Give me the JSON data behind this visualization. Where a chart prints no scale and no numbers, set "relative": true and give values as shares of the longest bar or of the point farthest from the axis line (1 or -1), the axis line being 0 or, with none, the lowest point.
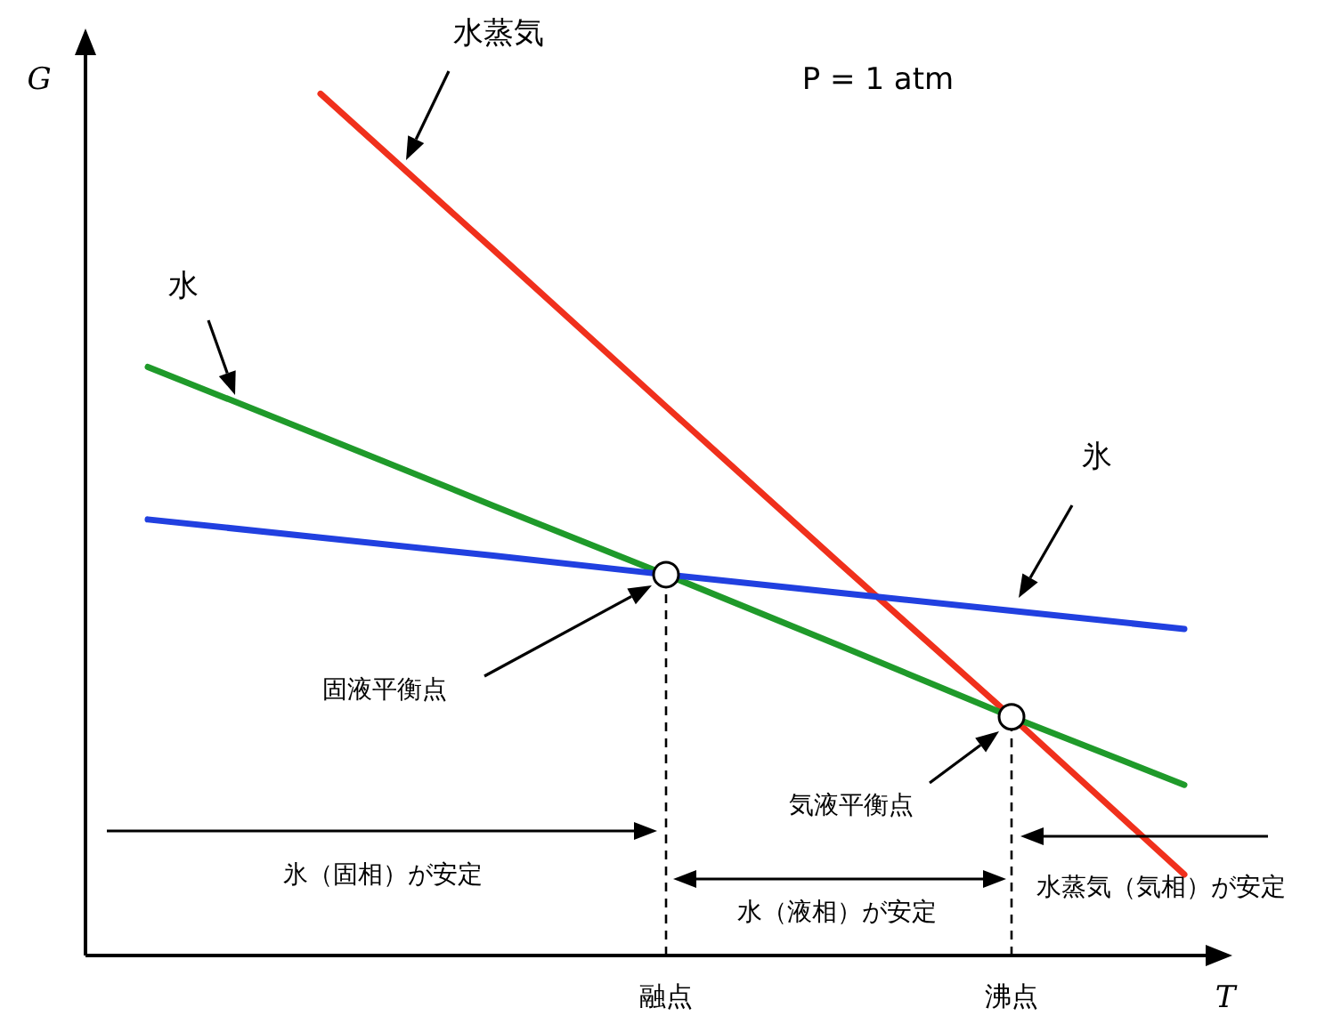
{
  "chart_data": {
    "type": "line",
    "relative": true,
    "xlabel": "T",
    "ylabel": "G",
    "categories": [
      null,
      null,
      null,
      "融点",
      null,
      "沸点",
      null
    ],
    "series": [
      {
        "name": "水蒸気",
        "color": "#f0301c",
        "values": [
          null,
          1,
          0.819,
          0.637,
          0.456,
          0.277,
          0.094
        ]
      },
      {
        "name": "水",
        "color": "#1f9a2a",
        "values": [
          0.683,
          0.603,
          0.522,
          0.442,
          0.36,
          0.277,
          0.198
        ]
      },
      {
        "name": "氷",
        "color": "#2140e0",
        "values": [
          0.506,
          0.485,
          0.464,
          0.442,
          0.421,
          0.4,
          0.379
        ]
      }
    ],
    "ref_lines": [
      {
        "axis": "x",
        "value": "融点",
        "line_style": "dashed"
      },
      {
        "axis": "x",
        "value": "沸点",
        "line_style": "dashed"
      }
    ],
    "annotations": [
      "P = 1 atm",
      "固液平衡点",
      "気液平衡点",
      "氷（固相）が安定",
      "水（液相）が安定",
      "水蒸気（気相）が安定"
    ]
  }
}
